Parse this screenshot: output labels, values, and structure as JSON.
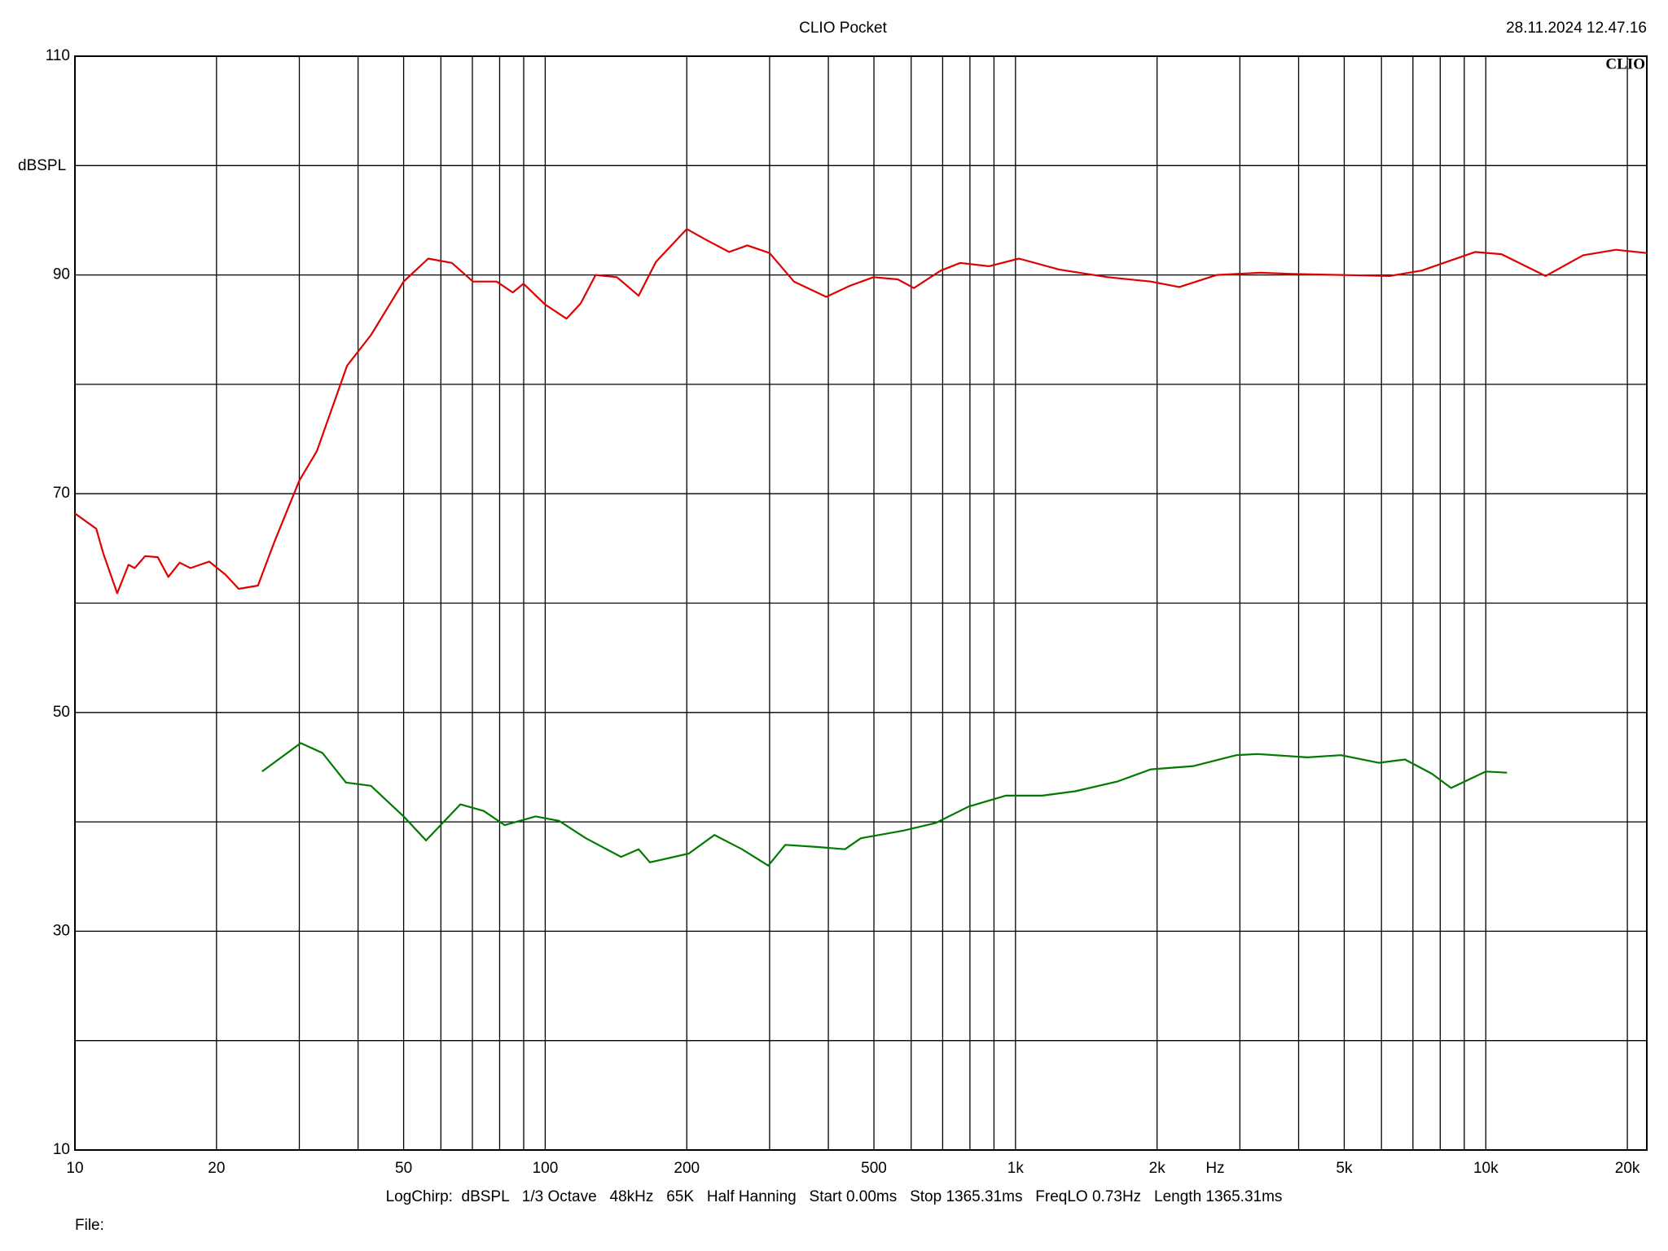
{
  "chart_data": {
    "type": "line",
    "title": "CLIO Pocket",
    "timestamp": "28.11.2024 12.47.16",
    "logo": "CLIO",
    "ylabel": "dBSPL",
    "xlabel": "Hz",
    "footer": "LogChirp:  dBSPL   1/3 Octave   48kHz   65K   Half Hanning   Start 0.00ms   Stop 1365.31ms   FreqLO 0.73Hz   Length 1365.31ms",
    "file_label": "File:",
    "xscale": "log",
    "xlim": [
      10,
      22000
    ],
    "ylim": [
      10,
      110
    ],
    "xticks": [
      10,
      20,
      50,
      100,
      200,
      500,
      {
        "value": 1000,
        "label": "1k"
      },
      {
        "value": 2000,
        "label": "2k"
      },
      {
        "value": 5000,
        "label": "5k"
      },
      {
        "value": 10000,
        "label": "10k"
      },
      {
        "value": 20000,
        "label": "20k"
      }
    ],
    "xminor": [
      30,
      40,
      60,
      70,
      80,
      90,
      300,
      400,
      600,
      700,
      800,
      900,
      3000,
      4000,
      6000,
      7000,
      8000,
      9000
    ],
    "yticks": [
      10,
      30,
      50,
      70,
      90,
      110
    ],
    "yminor": [
      20,
      40,
      60,
      80,
      100
    ],
    "grid": true,
    "series": [
      {
        "color": "#e00000",
        "x": [
          10,
          11.1,
          11.5,
          12.3,
          13.0,
          13.4,
          14.1,
          15.0,
          15.8,
          16.7,
          17.6,
          19.3,
          20.9,
          22.3,
          24.5,
          26.5,
          30,
          32.7,
          37.9,
          42.6,
          50,
          56.4,
          63.3,
          70.2,
          78.8,
          85.3,
          89.9,
          100,
          111,
          119,
          128,
          142,
          158,
          172,
          200,
          218,
          246,
          269,
          300,
          338,
          396,
          444,
          499,
          562,
          608,
          694,
          763,
          878,
          1017,
          1238,
          1570,
          1940,
          2230,
          2680,
          3310,
          3880,
          4920,
          6240,
          7310,
          9490,
          10800,
          13400,
          16100,
          18900,
          22000
        ],
        "values": [
          68.2,
          66.8,
          64.5,
          60.9,
          63.5,
          63.2,
          64.3,
          64.2,
          62.4,
          63.7,
          63.2,
          63.8,
          62.6,
          61.3,
          61.6,
          65.5,
          71.2,
          73.9,
          81.7,
          84.5,
          89.4,
          91.5,
          91.1,
          89.4,
          89.4,
          88.4,
          89.2,
          87.3,
          86.0,
          87.4,
          90.0,
          89.8,
          88.1,
          91.2,
          94.2,
          93.3,
          92.1,
          92.7,
          92.0,
          89.4,
          88.0,
          89.0,
          89.8,
          89.6,
          88.8,
          90.4,
          91.1,
          90.8,
          91.5,
          90.5,
          89.8,
          89.4,
          88.9,
          90.0,
          90.2,
          90.1,
          90.0,
          89.9,
          90.4,
          92.1,
          91.9,
          89.9,
          91.8,
          92.3,
          92.0
        ]
      },
      {
        "color": "#007a00",
        "x": [
          25,
          30.2,
          33.6,
          37.7,
          42.6,
          50,
          55.8,
          66,
          74,
          82,
          95.4,
          107,
          122,
          145,
          158,
          167,
          202,
          229,
          262,
          298,
          324,
          380,
          434,
          469,
          578,
          677,
          795,
          953,
          1140,
          1340,
          1650,
          1940,
          2390,
          2950,
          3270,
          4180,
          4920,
          5920,
          6730,
          7680,
          8440,
          10000,
          11100
        ],
        "values": [
          44.6,
          47.2,
          46.3,
          43.6,
          43.3,
          40.5,
          38.3,
          41.6,
          41.0,
          39.7,
          40.5,
          40.1,
          38.5,
          36.8,
          37.5,
          36.3,
          37.1,
          38.8,
          37.5,
          36.0,
          37.9,
          37.7,
          37.5,
          38.5,
          39.2,
          39.9,
          41.4,
          42.4,
          42.4,
          42.8,
          43.7,
          44.8,
          45.1,
          46.1,
          46.2,
          45.9,
          46.1,
          45.4,
          45.7,
          44.4,
          43.1,
          44.6,
          44.5
        ]
      }
    ]
  }
}
